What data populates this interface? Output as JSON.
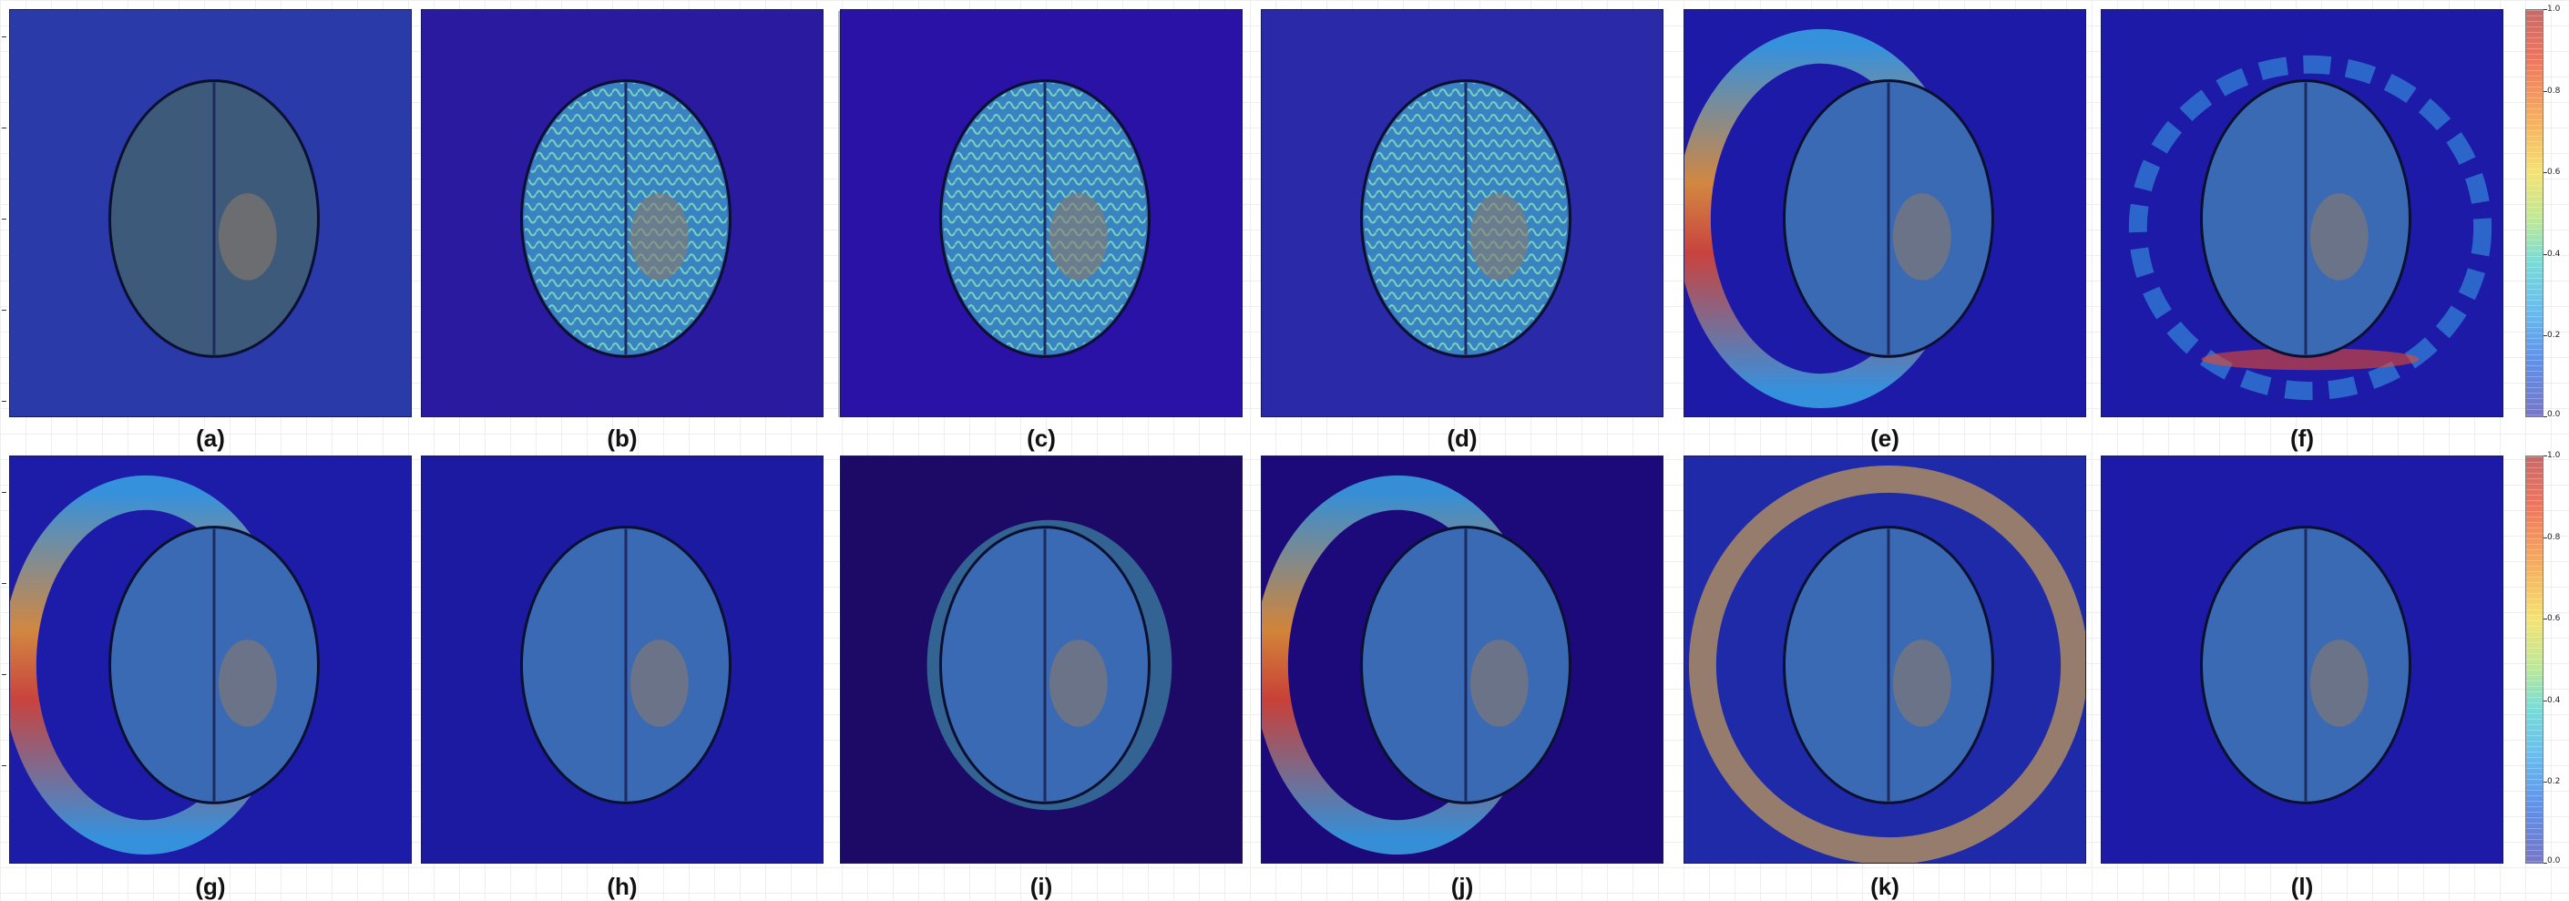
{
  "panels": [
    {
      "label": "(a)",
      "bg": "#2a3aa8",
      "style": "plain"
    },
    {
      "label": "(b)",
      "bg": "#2a1aa0",
      "style": "edges"
    },
    {
      "label": "(c)",
      "bg": "#2a12a6",
      "style": "texture"
    },
    {
      "label": "(d)",
      "bg": "#2a2aa8",
      "style": "edges"
    },
    {
      "label": "(e)",
      "bg": "#1e1aa8",
      "style": "ring-left"
    },
    {
      "label": "(f)",
      "bg": "#1e1aa8",
      "style": "ring-bottom"
    },
    {
      "label": "(g)",
      "bg": "#1c1ca8",
      "style": "ring-left"
    },
    {
      "label": "(h)",
      "bg": "#1c1aa0",
      "style": "hot-right"
    },
    {
      "label": "(i)",
      "bg": "#1c0a66",
      "style": "hot-center"
    },
    {
      "label": "(j)",
      "bg": "#1c0a7a",
      "style": "ring-left-hot"
    },
    {
      "label": "(k)",
      "bg": "#1e2aa8",
      "style": "ring-full"
    },
    {
      "label": "(l)",
      "bg": "#1e1aa8",
      "style": "spot"
    }
  ],
  "colorbar_ticks": [
    "1.0",
    "0.8",
    "0.6",
    "0.4",
    "0.2",
    "0.0"
  ]
}
